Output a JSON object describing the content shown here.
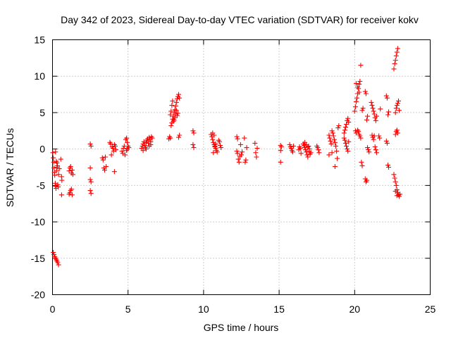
{
  "chart_data": {
    "type": "scatter",
    "title": "Day 342 of 2023, Sidereal Day-to-day VTEC variation (SDTVAR) for receiver kokv",
    "xlabel": "GPS time / hours",
    "ylabel": "SDTVAR / TECUs",
    "xlim": [
      0,
      25
    ],
    "ylim": [
      -20,
      15
    ],
    "xticks": [
      0,
      5,
      10,
      15,
      20,
      25
    ],
    "yticks": [
      -20,
      -15,
      -10,
      -5,
      0,
      5,
      10,
      15
    ],
    "xtick_labels": [
      "0",
      "5",
      "10",
      "15",
      "20",
      "25"
    ],
    "ytick_labels": [
      "-20",
      "-15",
      "-10",
      "-5",
      "0",
      "5",
      "10",
      "15"
    ],
    "grid": true,
    "marker": "plus",
    "colors": {
      "points": "#ff0000",
      "grid": "#a0a0a0",
      "frame": "#000000",
      "background": "#ffffff"
    },
    "series": [
      {
        "name": "SDTVAR",
        "points": [
          [
            0.02,
            -0.5
          ],
          [
            0.05,
            -1.2
          ],
          [
            0.08,
            -1.8
          ],
          [
            0.1,
            -2.6
          ],
          [
            0.12,
            -3.2
          ],
          [
            0.15,
            -3.6
          ],
          [
            0.18,
            -4.7
          ],
          [
            0.2,
            -5.1
          ],
          [
            0.23,
            -5.4
          ],
          [
            0.26,
            -3.0
          ],
          [
            0.3,
            -2.5
          ],
          [
            0.35,
            -4.9
          ],
          [
            0.38,
            -5.2
          ],
          [
            0.2,
            -0.4
          ],
          [
            0.25,
            -1.7
          ],
          [
            0.3,
            -1.9
          ],
          [
            0.33,
            -2.3
          ],
          [
            0.4,
            -3.5
          ],
          [
            0.45,
            -2.7
          ],
          [
            0.05,
            -14.2
          ],
          [
            0.1,
            -14.5
          ],
          [
            0.15,
            -14.8
          ],
          [
            0.2,
            -15.0
          ],
          [
            0.25,
            -15.2
          ],
          [
            0.3,
            -15.4
          ],
          [
            0.35,
            -15.6
          ],
          [
            0.4,
            -15.9
          ],
          [
            0.55,
            -1.4
          ],
          [
            0.6,
            -3.8
          ],
          [
            0.62,
            -4.3
          ],
          [
            0.6,
            -6.3
          ],
          [
            1.1,
            -6.2
          ],
          [
            1.15,
            -6.0
          ],
          [
            1.2,
            -5.7
          ],
          [
            1.25,
            -5.5
          ],
          [
            1.3,
            -6.3
          ],
          [
            1.1,
            -3.0
          ],
          [
            1.15,
            -2.6
          ],
          [
            1.2,
            -2.4
          ],
          [
            1.25,
            -3.3
          ],
          [
            1.3,
            -2.9
          ],
          [
            1.35,
            -3.5
          ],
          [
            2.5,
            0.7
          ],
          [
            2.55,
            0.4
          ],
          [
            2.5,
            -2.6
          ],
          [
            2.5,
            -4.2
          ],
          [
            2.55,
            -4.5
          ],
          [
            2.5,
            -5.7
          ],
          [
            2.55,
            -6.1
          ],
          [
            3.3,
            -1.2
          ],
          [
            3.35,
            -1.5
          ],
          [
            3.4,
            -2.6
          ],
          [
            3.45,
            -2.9
          ],
          [
            3.5,
            -1.1
          ],
          [
            3.55,
            -2.4
          ],
          [
            3.8,
            0.9
          ],
          [
            3.85,
            0.7
          ],
          [
            3.9,
            -0.8
          ],
          [
            3.95,
            0.3
          ],
          [
            4.0,
            0.1
          ],
          [
            4.05,
            -0.3
          ],
          [
            4.1,
            0.6
          ],
          [
            4.15,
            0.4
          ],
          [
            4.1,
            -3.1
          ],
          [
            4.2,
            -0.1
          ],
          [
            4.6,
            -0.3
          ],
          [
            4.65,
            -0.6
          ],
          [
            4.7,
            0.1
          ],
          [
            4.75,
            0.4
          ],
          [
            4.8,
            -0.8
          ],
          [
            4.85,
            1.3
          ],
          [
            4.9,
            1.5
          ],
          [
            4.95,
            0.9
          ],
          [
            5.0,
            0.4
          ],
          [
            5.05,
            0.2
          ],
          [
            4.9,
            -0.2
          ],
          [
            4.95,
            0.0
          ],
          [
            5.9,
            0.1
          ],
          [
            5.95,
            0.4
          ],
          [
            6.0,
            0.7
          ],
          [
            6.05,
            1.0
          ],
          [
            6.1,
            0.5
          ],
          [
            6.15,
            0.2
          ],
          [
            6.2,
            0.9
          ],
          [
            6.25,
            1.2
          ],
          [
            6.3,
            1.4
          ],
          [
            6.35,
            0.8
          ],
          [
            6.4,
            1.6
          ],
          [
            6.45,
            1.3
          ],
          [
            6.5,
            1.0
          ],
          [
            6.55,
            1.7
          ],
          [
            6.6,
            1.5
          ],
          [
            6.0,
            -0.2
          ],
          [
            6.2,
            0.0
          ],
          [
            6.4,
            0.4
          ],
          [
            6.5,
            0.6
          ],
          [
            7.7,
            1.4
          ],
          [
            7.75,
            1.7
          ],
          [
            7.8,
            1.5
          ],
          [
            7.85,
            3.2
          ],
          [
            7.9,
            3.6
          ],
          [
            7.95,
            4.1
          ],
          [
            8.0,
            4.5
          ],
          [
            8.05,
            5.0
          ],
          [
            8.1,
            5.4
          ],
          [
            8.15,
            5.9
          ],
          [
            8.2,
            6.4
          ],
          [
            8.25,
            6.9
          ],
          [
            8.3,
            7.2
          ],
          [
            8.35,
            7.5
          ],
          [
            8.4,
            7.0
          ],
          [
            7.8,
            4.7
          ],
          [
            7.85,
            5.2
          ],
          [
            7.9,
            6.0
          ],
          [
            7.95,
            6.6
          ],
          [
            8.0,
            3.8
          ],
          [
            8.05,
            4.0
          ],
          [
            8.1,
            4.3
          ],
          [
            8.15,
            4.8
          ],
          [
            8.2,
            5.3
          ],
          [
            8.25,
            4.6
          ],
          [
            8.3,
            4.9
          ],
          [
            8.35,
            1.6
          ],
          [
            8.4,
            1.9
          ],
          [
            9.3,
            2.5
          ],
          [
            9.35,
            2.2
          ],
          [
            9.3,
            0.6
          ],
          [
            9.35,
            0.2
          ],
          [
            10.5,
            2.0
          ],
          [
            10.55,
            1.7
          ],
          [
            10.6,
            1.3
          ],
          [
            10.65,
            0.9
          ],
          [
            10.7,
            0.6
          ],
          [
            10.75,
            0.3
          ],
          [
            10.8,
            0.1
          ],
          [
            10.85,
            -0.2
          ],
          [
            10.9,
            -0.4
          ],
          [
            10.6,
            2.2
          ],
          [
            10.7,
            1.9
          ],
          [
            10.8,
            0.7
          ],
          [
            10.65,
            -0.5
          ],
          [
            10.75,
            0.4
          ],
          [
            11.0,
            1.2
          ],
          [
            11.05,
            1.0
          ],
          [
            11.1,
            0.5
          ],
          [
            11.15,
            0.2
          ],
          [
            12.2,
            1.7
          ],
          [
            12.25,
            1.4
          ],
          [
            12.2,
            -0.3
          ],
          [
            12.25,
            -0.6
          ],
          [
            12.3,
            -1.4
          ],
          [
            12.35,
            -1.8
          ],
          [
            12.4,
            -1.0
          ],
          [
            12.45,
            0.6
          ],
          [
            12.5,
            -0.8
          ],
          [
            12.55,
            -0.4
          ],
          [
            12.7,
            1.5
          ],
          [
            12.75,
            -1.8
          ],
          [
            12.8,
            -1.5
          ],
          [
            12.85,
            0.2
          ],
          [
            13.4,
            0.8
          ],
          [
            13.45,
            -0.5
          ],
          [
            13.5,
            -1.1
          ],
          [
            13.55,
            0.1
          ],
          [
            15.1,
            -1.8
          ],
          [
            15.1,
            0.5
          ],
          [
            15.15,
            0.3
          ],
          [
            15.1,
            -0.2
          ],
          [
            15.7,
            0.6
          ],
          [
            15.75,
            0.3
          ],
          [
            15.8,
            0.1
          ],
          [
            15.85,
            -0.2
          ],
          [
            15.9,
            -0.4
          ],
          [
            15.95,
            0.4
          ],
          [
            16.3,
            -0.1
          ],
          [
            16.35,
            0.3
          ],
          [
            16.4,
            0.1
          ],
          [
            16.45,
            -0.6
          ],
          [
            16.6,
            0.7
          ],
          [
            16.65,
            0.5
          ],
          [
            16.7,
            0.2
          ],
          [
            16.75,
            -0.1
          ],
          [
            16.8,
            -0.4
          ],
          [
            16.85,
            -0.8
          ],
          [
            16.9,
            -1.1
          ],
          [
            16.95,
            0.4
          ],
          [
            17.0,
            -0.3
          ],
          [
            17.05,
            -0.7
          ],
          [
            16.7,
            0.9
          ],
          [
            16.8,
            0.6
          ],
          [
            16.9,
            0.3
          ],
          [
            17.0,
            0.0
          ],
          [
            17.1,
            -0.5
          ],
          [
            17.5,
            0.4
          ],
          [
            17.55,
            0.2
          ],
          [
            17.6,
            -0.1
          ],
          [
            17.65,
            -0.5
          ],
          [
            18.3,
            1.9
          ],
          [
            18.35,
            1.5
          ],
          [
            18.4,
            1.1
          ],
          [
            18.45,
            0.7
          ],
          [
            18.5,
            2.5
          ],
          [
            18.55,
            2.2
          ],
          [
            18.6,
            1.8
          ],
          [
            18.65,
            1.3
          ],
          [
            18.7,
            0.9
          ],
          [
            18.75,
            0.4
          ],
          [
            18.8,
            -0.3
          ],
          [
            18.85,
            -1.3
          ],
          [
            18.7,
            -2.4
          ],
          [
            18.3,
            -0.8
          ],
          [
            18.5,
            -0.5
          ],
          [
            18.9,
            2.9
          ],
          [
            18.95,
            3.2
          ],
          [
            19.3,
            2.2
          ],
          [
            19.35,
            2.6
          ],
          [
            19.4,
            3.0
          ],
          [
            19.45,
            3.4
          ],
          [
            19.5,
            3.9
          ],
          [
            19.55,
            4.2
          ],
          [
            19.6,
            3.7
          ],
          [
            19.35,
            1.2
          ],
          [
            19.4,
            0.8
          ],
          [
            19.45,
            0.4
          ],
          [
            19.5,
            0.0
          ],
          [
            19.55,
            -0.3
          ],
          [
            19.3,
            1.5
          ],
          [
            19.6,
            1.0
          ],
          [
            20.0,
            5.2
          ],
          [
            20.05,
            5.8
          ],
          [
            20.1,
            6.5
          ],
          [
            20.15,
            7.0
          ],
          [
            20.2,
            7.6
          ],
          [
            20.25,
            8.3
          ],
          [
            20.3,
            8.9
          ],
          [
            20.35,
            9.3
          ],
          [
            20.1,
            9.0
          ],
          [
            20.2,
            8.5
          ],
          [
            20.3,
            7.8
          ],
          [
            20.05,
            2.5
          ],
          [
            20.1,
            2.2
          ],
          [
            20.2,
            2.6
          ],
          [
            20.25,
            2.4
          ],
          [
            20.3,
            2.0
          ],
          [
            20.35,
            1.8
          ],
          [
            20.4,
            1.5
          ],
          [
            20.45,
            -1.8
          ],
          [
            20.5,
            -2.3
          ],
          [
            20.4,
            11.5
          ],
          [
            20.5,
            5.3
          ],
          [
            20.55,
            5.6
          ],
          [
            20.7,
            7.9
          ],
          [
            20.75,
            7.6
          ],
          [
            20.8,
            4.0
          ],
          [
            20.85,
            4.5
          ],
          [
            20.7,
            -4.1
          ],
          [
            20.75,
            -4.5
          ],
          [
            20.8,
            -4.3
          ],
          [
            20.85,
            0.2
          ],
          [
            20.9,
            -0.1
          ],
          [
            20.95,
            -0.4
          ],
          [
            21.1,
            6.4
          ],
          [
            21.15,
            6.0
          ],
          [
            21.2,
            5.6
          ],
          [
            21.25,
            5.2
          ],
          [
            21.3,
            4.8
          ],
          [
            21.35,
            4.3
          ],
          [
            21.4,
            3.9
          ],
          [
            21.45,
            4.5
          ],
          [
            21.15,
            1.9
          ],
          [
            21.2,
            1.6
          ],
          [
            21.25,
            1.3
          ],
          [
            21.3,
            1.8
          ],
          [
            21.35,
            0.3
          ],
          [
            21.4,
            -0.1
          ],
          [
            21.45,
            -0.5
          ],
          [
            21.6,
            1.8
          ],
          [
            21.65,
            1.5
          ],
          [
            21.7,
            5.5
          ],
          [
            22.1,
            7.3
          ],
          [
            22.15,
            7.0
          ],
          [
            22.2,
            4.7
          ],
          [
            22.25,
            5.1
          ],
          [
            22.1,
            1.1
          ],
          [
            22.15,
            0.8
          ],
          [
            22.2,
            -2.2
          ],
          [
            22.25,
            -2.5
          ],
          [
            22.6,
            -3.5
          ],
          [
            22.65,
            -4.0
          ],
          [
            22.7,
            -4.5
          ],
          [
            22.75,
            -5.0
          ],
          [
            22.8,
            -5.6
          ],
          [
            22.85,
            -6.0
          ],
          [
            22.9,
            -6.3
          ],
          [
            22.95,
            -6.5
          ],
          [
            23.0,
            -6.2
          ],
          [
            22.6,
            11.0
          ],
          [
            22.65,
            11.7
          ],
          [
            22.7,
            12.2
          ],
          [
            22.75,
            12.8
          ],
          [
            22.8,
            13.3
          ],
          [
            22.85,
            13.8
          ],
          [
            22.7,
            2.0
          ],
          [
            22.75,
            2.4
          ],
          [
            22.8,
            2.6
          ],
          [
            22.85,
            2.2
          ],
          [
            22.7,
            5.0
          ],
          [
            22.75,
            5.6
          ],
          [
            22.8,
            6.0
          ],
          [
            22.85,
            6.3
          ],
          [
            22.9,
            6.6
          ],
          [
            22.95,
            5.3
          ],
          [
            22.7,
            -5.8
          ],
          [
            22.8,
            -6.4
          ]
        ]
      }
    ]
  }
}
